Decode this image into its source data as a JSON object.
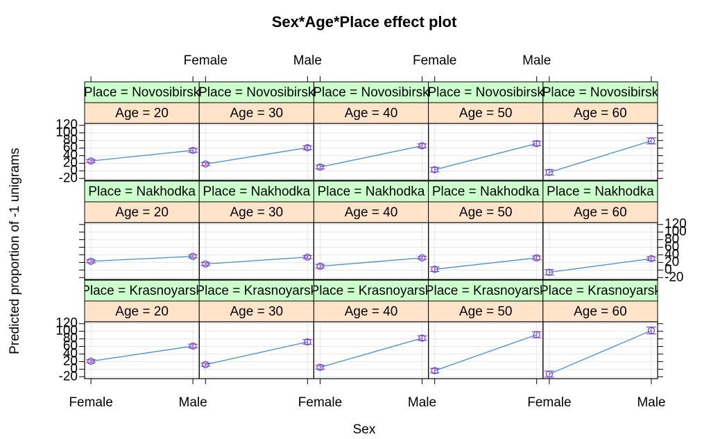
{
  "chart_data": {
    "type": "effect",
    "title": "Sex*Age*Place effect plot",
    "xlabel": "Sex",
    "ylabel": "Predicted proportion of -1 unigrams",
    "categories": [
      "Female",
      "Male"
    ],
    "ylim": [
      -25,
      125
    ],
    "yticks": [
      -20,
      0,
      20,
      40,
      60,
      80,
      100,
      120
    ],
    "line_color": "#3b8fdc",
    "point_color": "#1f5fd0",
    "error_color": "#e020e0",
    "place_strip_color": "#ccffcc",
    "age_strip_color": "#ffe4c9",
    "grid": true,
    "columns": 5,
    "panels": [
      {
        "place": "Place = Novosibirsk",
        "age": "Age = 20",
        "values": [
          26,
          54
        ],
        "errors": [
          4,
          5
        ]
      },
      {
        "place": "Place = Novosibirsk",
        "age": "Age = 30",
        "values": [
          18,
          61
        ],
        "errors": [
          4,
          5
        ]
      },
      {
        "place": "Place = Novosibirsk",
        "age": "Age = 40",
        "values": [
          10,
          66
        ],
        "errors": [
          5,
          5
        ]
      },
      {
        "place": "Place = Novosibirsk",
        "age": "Age = 50",
        "values": [
          3,
          72
        ],
        "errors": [
          6,
          6
        ]
      },
      {
        "place": "Place = Novosibirsk",
        "age": "Age = 60",
        "values": [
          -4,
          79
        ],
        "errors": [
          7,
          8
        ]
      },
      {
        "place": "Place = Nakhodka",
        "age": "Age = 20",
        "values": [
          23,
          36
        ],
        "errors": [
          4,
          4
        ]
      },
      {
        "place": "Place = Nakhodka",
        "age": "Age = 30",
        "values": [
          16,
          34
        ],
        "errors": [
          4,
          4
        ]
      },
      {
        "place": "Place = Nakhodka",
        "age": "Age = 40",
        "values": [
          10,
          32
        ],
        "errors": [
          5,
          4
        ]
      },
      {
        "place": "Place = Nakhodka",
        "age": "Age = 50",
        "values": [
          2,
          32
        ],
        "errors": [
          6,
          5
        ]
      },
      {
        "place": "Place = Nakhodka",
        "age": "Age = 60",
        "values": [
          -6,
          30
        ],
        "errors": [
          7,
          5
        ]
      },
      {
        "place": "Place = Krasnoyarsk",
        "age": "Age = 20",
        "values": [
          21,
          61
        ],
        "errors": [
          4,
          5
        ]
      },
      {
        "place": "Place = Krasnoyarsk",
        "age": "Age = 30",
        "values": [
          12,
          72
        ],
        "errors": [
          4,
          6
        ]
      },
      {
        "place": "Place = Krasnoyarsk",
        "age": "Age = 40",
        "values": [
          5,
          82
        ],
        "errors": [
          5,
          6
        ]
      },
      {
        "place": "Place = Krasnoyarsk",
        "age": "Age = 50",
        "values": [
          -4,
          91
        ],
        "errors": [
          6,
          8
        ]
      },
      {
        "place": "Place = Krasnoyarsk",
        "age": "Age = 60",
        "values": [
          -13,
          102
        ],
        "errors": [
          8,
          9
        ]
      }
    ]
  }
}
